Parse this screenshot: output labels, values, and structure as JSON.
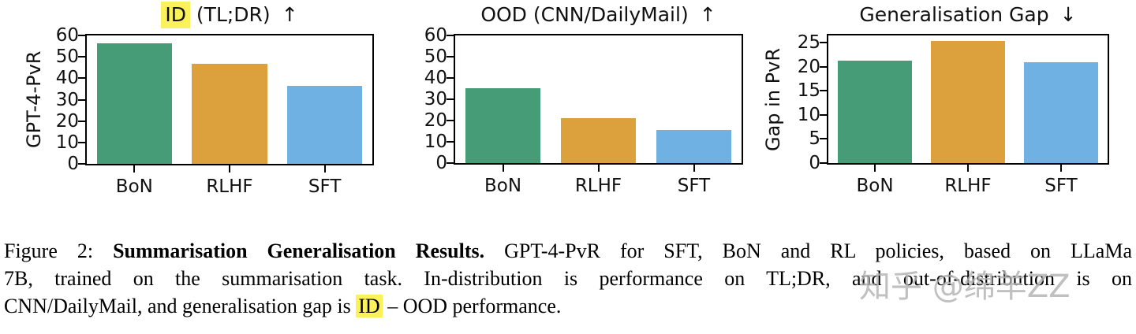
{
  "colors": {
    "bar_green": "#469c76",
    "bar_orange": "#dca13d",
    "bar_blue": "#6fb1e2",
    "highlight_yellow": "#faf15b",
    "axis_black": "#000000",
    "watermark_gray": "#b3b3b3"
  },
  "chart_data": [
    {
      "type": "bar",
      "title_highlight": "ID",
      "title_tail": " (TL;DR)",
      "title_arrow": "↑",
      "ylabel": "GPT-4-PvR",
      "categories": [
        "BoN",
        "RLHF",
        "SFT"
      ],
      "values": [
        56.4,
        46.6,
        36.6
      ],
      "bar_colors": [
        "#469c76",
        "#dca13d",
        "#6fb1e2"
      ],
      "ylim": [
        0,
        60
      ],
      "yticks": [
        0,
        10,
        20,
        30,
        40,
        50,
        60
      ],
      "grid": false,
      "legend": false
    },
    {
      "type": "bar",
      "title_highlight": "",
      "title_tail": "OOD (CNN/DailyMail)",
      "title_arrow": "↑",
      "ylabel": "",
      "categories": [
        "BoN",
        "RLHF",
        "SFT"
      ],
      "values": [
        35.2,
        21.2,
        15.6
      ],
      "bar_colors": [
        "#469c76",
        "#dca13d",
        "#6fb1e2"
      ],
      "ylim": [
        0,
        60
      ],
      "yticks": [
        0,
        10,
        20,
        30,
        40,
        50,
        60
      ],
      "grid": false,
      "legend": false
    },
    {
      "type": "bar",
      "title_highlight": "",
      "title_tail": "Generalisation Gap",
      "title_arrow": "↓",
      "ylabel": "Gap in PvR",
      "categories": [
        "BoN",
        "RLHF",
        "SFT"
      ],
      "values": [
        21.2,
        25.4,
        21.0
      ],
      "bar_colors": [
        "#469c76",
        "#dca13d",
        "#6fb1e2"
      ],
      "ylim": [
        0,
        26.5
      ],
      "yticks": [
        0,
        5,
        10,
        15,
        20,
        25
      ],
      "grid": false,
      "legend": false
    }
  ],
  "caption": {
    "line1_prefix": "Figure 2: ",
    "line1_bold": "Summarisation Generalisation Results.",
    "line1_rest": " GPT-4-PvR for SFT, BoN and RL policies, based on LLaMa",
    "line2": "7B, trained on the summarisation task. In-distribution is performance on TL;DR, and out-of-distribution is on",
    "line3_pre": "CNN/DailyMail, and generalisation gap is ",
    "line3_highlight": "ID",
    "line3_post": " – OOD performance."
  },
  "watermark": {
    "text": "知乎 @绵羊ZZ"
  }
}
